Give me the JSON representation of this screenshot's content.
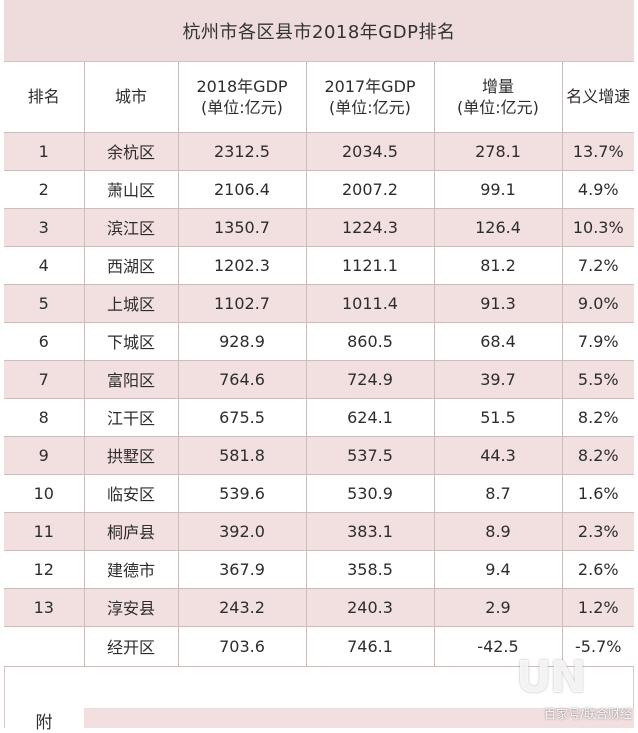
{
  "title": "杭州市各区县市2018年GDP排名",
  "headers": [
    [
      "排名"
    ],
    [
      "城市"
    ],
    [
      "2018年GDP",
      "(单位:亿元)"
    ],
    [
      "2017年GDP",
      "(单位:亿元)"
    ],
    [
      "增量",
      "(单位:亿元)"
    ],
    [
      "名义增速"
    ]
  ],
  "rows": [
    [
      "1",
      "余杭区",
      "2312.5",
      "2034.5",
      "278.1",
      "13.7%"
    ],
    [
      "2",
      "萧山区",
      "2106.4",
      "2007.2",
      "99.1",
      "4.9%"
    ],
    [
      "3",
      "滨江区",
      "1350.7",
      "1224.3",
      "126.4",
      "10.3%"
    ],
    [
      "4",
      "西湖区",
      "1202.3",
      "1121.1",
      "81.2",
      "7.2%"
    ],
    [
      "5",
      "上城区",
      "1102.7",
      "1011.4",
      "91.3",
      "9.0%"
    ],
    [
      "6",
      "下城区",
      "928.9",
      "860.5",
      "68.4",
      "7.9%"
    ],
    [
      "7",
      "富阳区",
      "764.6",
      "724.9",
      "39.7",
      "5.5%"
    ],
    [
      "8",
      "江干区",
      "675.5",
      "624.1",
      "51.5",
      "8.2%"
    ],
    [
      "9",
      "拱墅区",
      "581.8",
      "537.5",
      "44.3",
      "8.2%"
    ],
    [
      "10",
      "临安区",
      "539.6",
      "530.9",
      "8.7",
      "1.6%"
    ],
    [
      "11",
      "桐庐县",
      "392.0",
      "383.1",
      "8.9",
      "2.3%"
    ],
    [
      "12",
      "建德市",
      "367.9",
      "358.5",
      "9.4",
      "2.6%"
    ],
    [
      "13",
      "淳安县",
      "243.2",
      "240.3",
      "2.9",
      "1.2%"
    ],
    [
      "",
      "经开区",
      "703.6",
      "746.1",
      "-42.5",
      "-5.7%"
    ]
  ],
  "appendix_label": "附",
  "watermark": {
    "logo": "UN",
    "text": "百家号/联合财经"
  }
}
